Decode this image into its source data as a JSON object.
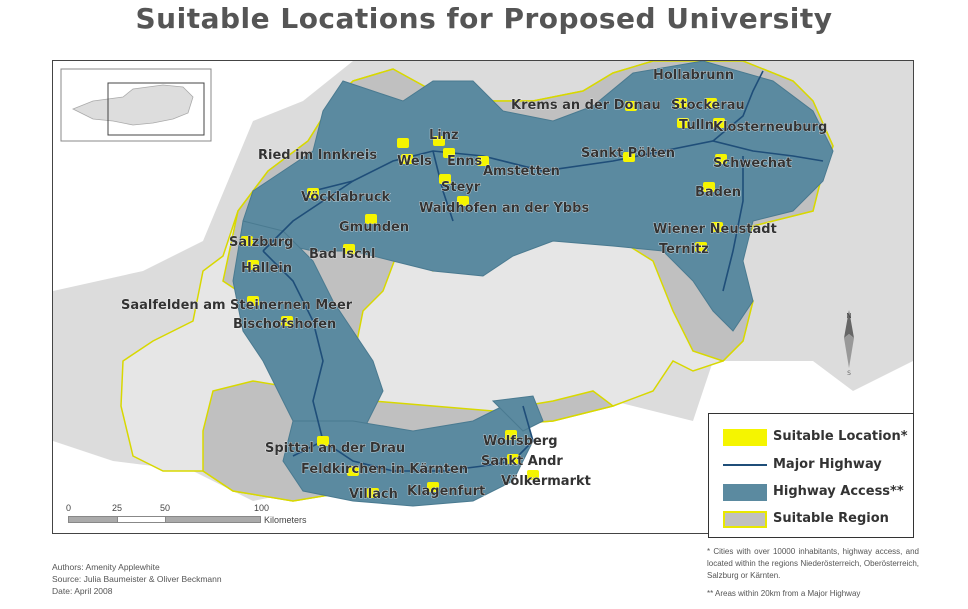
{
  "title": "Suitable Locations for Proposed University",
  "cities": [
    {
      "name": "Hollabrunn"
    },
    {
      "name": "Krems an der Donau"
    },
    {
      "name": "Stockerau"
    },
    {
      "name": "Tulln"
    },
    {
      "name": "Klosterneuburg"
    },
    {
      "name": "Linz"
    },
    {
      "name": "Ried im Innkreis"
    },
    {
      "name": "Wels"
    },
    {
      "name": "Enns"
    },
    {
      "name": "Amstetten"
    },
    {
      "name": "Sankt Pölten"
    },
    {
      "name": "Schwechat"
    },
    {
      "name": "Steyr"
    },
    {
      "name": "Vöcklabruck"
    },
    {
      "name": "Waidhofen an der Ybbs"
    },
    {
      "name": "Baden"
    },
    {
      "name": "Gmunden"
    },
    {
      "name": "Wiener Neustadt"
    },
    {
      "name": "Salzburg"
    },
    {
      "name": "Ternitz"
    },
    {
      "name": "Bad Ischl"
    },
    {
      "name": "Hallein"
    },
    {
      "name": "Saalfelden am Steinernen Meer"
    },
    {
      "name": "Bischofshofen"
    },
    {
      "name": "Wolfsberg"
    },
    {
      "name": "Spittal an der Drau"
    },
    {
      "name": "Sankt Andr"
    },
    {
      "name": "Feldkirchen in Kärnten"
    },
    {
      "name": "Völkermarkt"
    },
    {
      "name": "Klagenfurt"
    },
    {
      "name": "Villach"
    }
  ],
  "legend": {
    "items": [
      {
        "label": "Suitable Location*",
        "color": "#f5f500",
        "kind": "fill"
      },
      {
        "label": "Major Highway",
        "color": "#1f4e79",
        "kind": "line"
      },
      {
        "label": "Highway Access**",
        "color": "#5b8aa0",
        "kind": "fill"
      },
      {
        "label": "Suitable  Region",
        "color": "#c0c0c0",
        "kind": "fill"
      }
    ]
  },
  "scale": {
    "ticks": [
      "0",
      "25",
      "50",
      "100"
    ],
    "unit": "Kilometers"
  },
  "credits": {
    "authors": "Authors: Amenity Applewhite",
    "source": "Source: Julia Baumeister & Oliver Beckmann",
    "date": "Date: April 2008"
  },
  "footnotes": {
    "note1": "* Cities with over 10000 inhabitants, highway access, and located within the regions Niederösterreich, Oberösterreich, Salzburg or Kärnten.",
    "note2": "** Areas within 20km from a Major Highway"
  },
  "colors": {
    "outside": "#ffffff",
    "neighbor": "#dcdcdc",
    "austria": "#e6e6e6",
    "suitable_region": "#c0c0c0",
    "highway_access": "#5b8aa0",
    "highway": "#1f4e79",
    "city": "#f5f500",
    "border": "#e8e800"
  }
}
